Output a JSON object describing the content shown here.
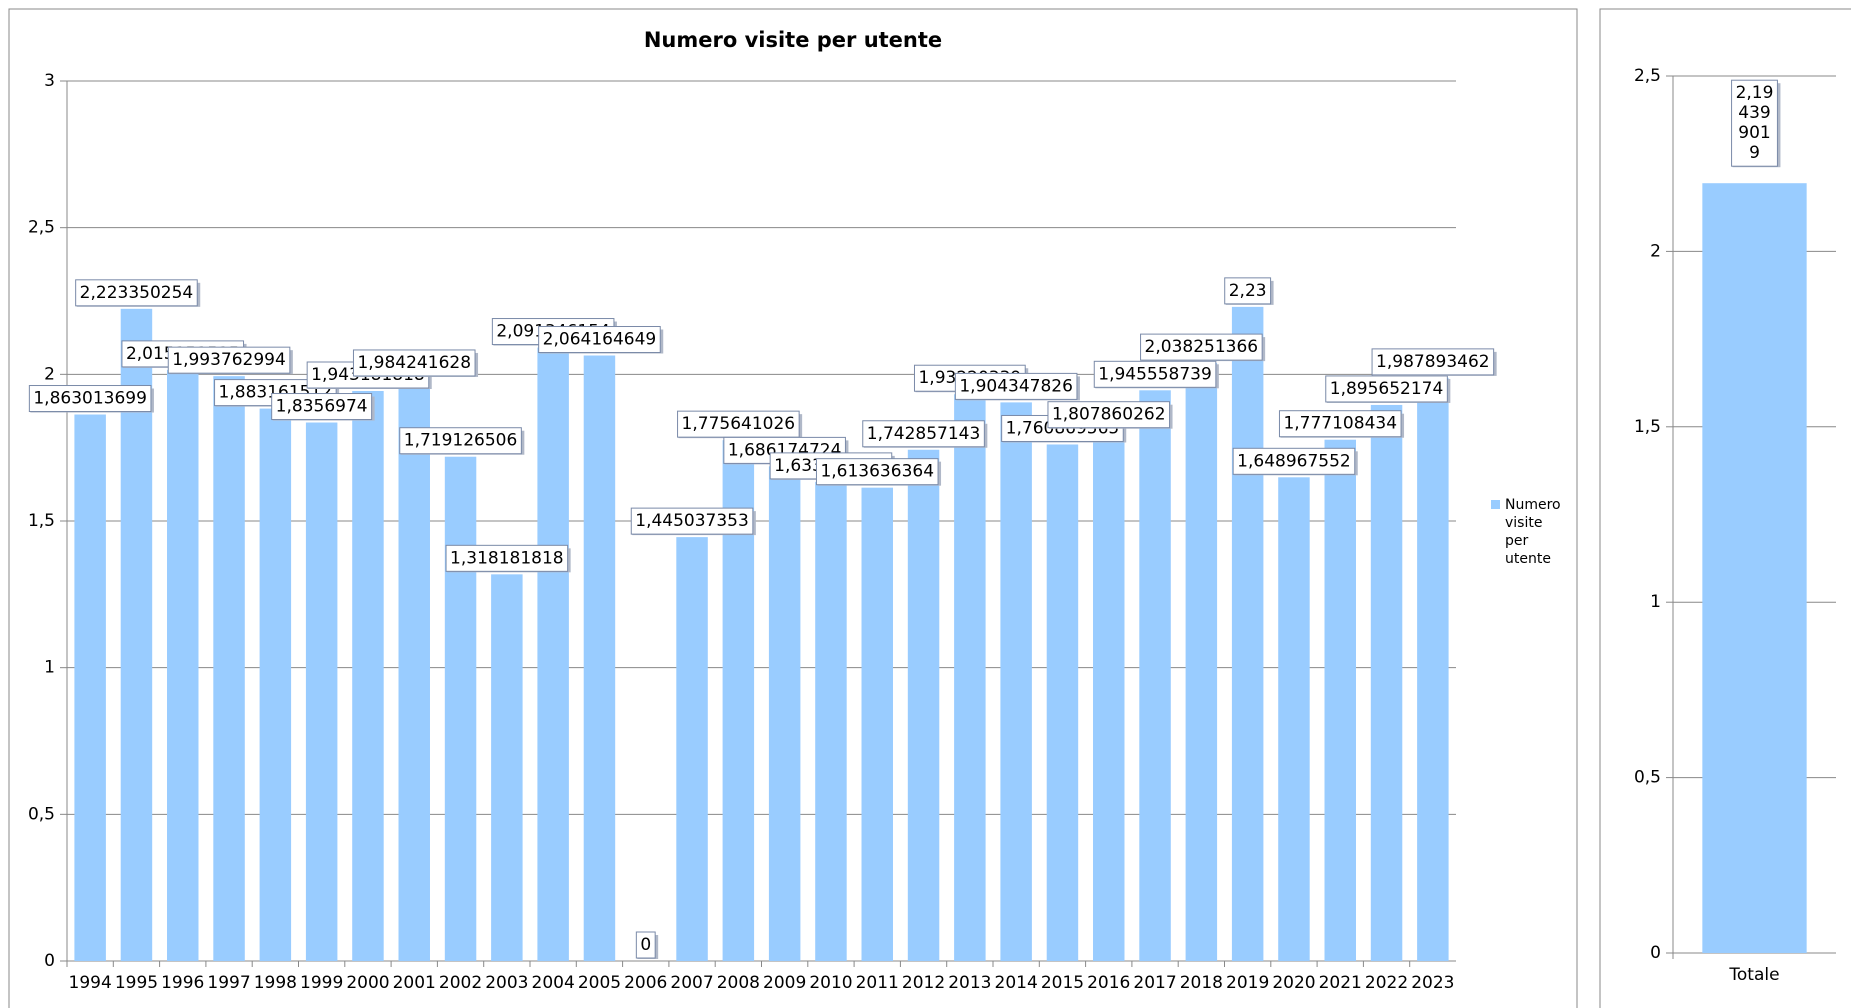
{
  "chart_data": [
    {
      "type": "bar",
      "title": "Numero visite per utente",
      "categories": [
        "1994",
        "1995",
        "1996",
        "1997",
        "1998",
        "1999",
        "2000",
        "2001",
        "2002",
        "2003",
        "2004",
        "2005",
        "2006",
        "2007",
        "2008",
        "2009",
        "2010",
        "2011",
        "2012",
        "2013",
        "2014",
        "2015",
        "2016",
        "2017",
        "2018",
        "2019",
        "2020",
        "2021",
        "2022",
        "2023"
      ],
      "series": [
        {
          "name": "Numero visite per utente",
          "color": "#99ccff",
          "values": [
            1.863013699,
            2.223350254,
            2.015151515,
            1.993762994,
            1.883161512,
            1.8356974,
            1.943181818,
            1.984241628,
            1.719126506,
            1.318181818,
            2.091346154,
            2.064164649,
            0,
            1.445037353,
            1.775641026,
            1.686174724,
            1.633333333,
            1.613636364,
            1.742857143,
            1.93220339,
            1.904347826,
            1.760869565,
            1.807860262,
            1.945558739,
            2.038251366,
            2.23,
            1.648967552,
            1.777108434,
            1.895652174,
            1.987893462
          ],
          "value_labels": [
            "1,863013699",
            "2,223350254",
            "2,015151515",
            "1,993762994",
            "1,883161512",
            "1,8356974",
            "1,943181818",
            "1,984241628",
            "1,719126506",
            "1,318181818",
            "2,091346154",
            "2,064164649",
            "0",
            "1,445037353",
            "1,775641026",
            "1,686174724",
            "1,633333333",
            "1,613636364",
            "1,742857143",
            "1,93220339",
            "1,904347826",
            "1,760869565",
            "1,807860262",
            "1,945558739",
            "2,038251366",
            "2,23",
            "1,648967552",
            "1,777108434",
            "1,895652174",
            "1,987893462"
          ]
        }
      ],
      "ylim": [
        0,
        3
      ],
      "yticks": [
        0,
        {
          "value": 0.5,
          "label": "0,5"
        },
        1,
        {
          "value": 1.5,
          "label": "1,5"
        },
        2,
        {
          "value": 2.5,
          "label": "2,5"
        },
        3
      ],
      "grid": true,
      "legend": "right"
    },
    {
      "type": "bar",
      "categories": [
        "Totale"
      ],
      "series": [
        {
          "name": "Numero visite per utente",
          "color": "#99ccff",
          "values": [
            2.194399019
          ],
          "value_labels": [
            "2,194399019"
          ]
        }
      ],
      "ylim": [
        0,
        2.5
      ],
      "yticks": [
        0,
        {
          "value": 0.5,
          "label": "0,5"
        },
        1,
        {
          "value": 1.5,
          "label": "1,5"
        },
        2,
        {
          "value": 2.5,
          "label": "2,5"
        }
      ],
      "grid": true
    }
  ]
}
